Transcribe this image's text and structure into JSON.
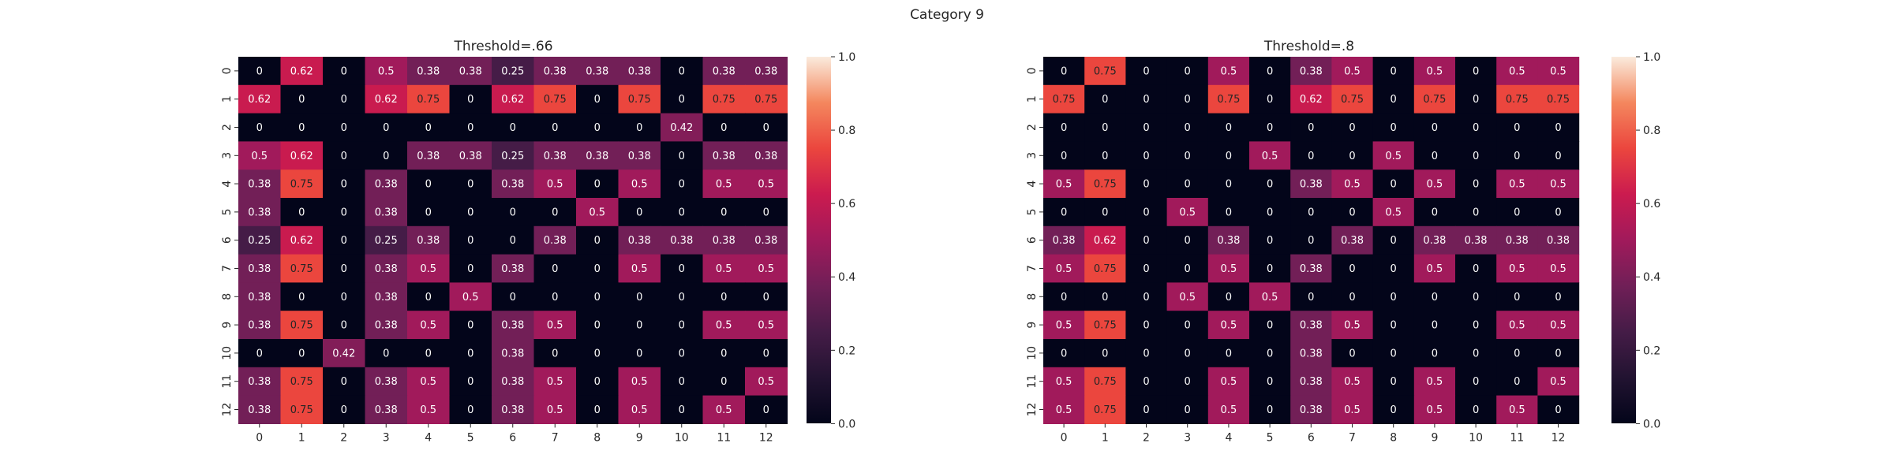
{
  "figure": {
    "suptitle": "Category 9"
  },
  "chart_data": [
    {
      "type": "heatmap",
      "title": "Threshold=.66",
      "xlabel": "",
      "ylabel": "",
      "x_ticks": [
        "0",
        "1",
        "2",
        "3",
        "4",
        "5",
        "6",
        "7",
        "8",
        "9",
        "10",
        "11",
        "12"
      ],
      "y_ticks": [
        "0",
        "1",
        "2",
        "3",
        "4",
        "5",
        "6",
        "7",
        "8",
        "9",
        "10",
        "11",
        "12"
      ],
      "colormap": "rocket",
      "vmin": 0.0,
      "vmax": 1.0,
      "colorbar_ticks": [
        "0.0",
        "0.2",
        "0.4",
        "0.6",
        "0.8",
        "1.0"
      ],
      "values": [
        [
          0,
          0.62,
          0,
          0.5,
          0.38,
          0.38,
          0.25,
          0.38,
          0.38,
          0.38,
          0,
          0.38,
          0.38
        ],
        [
          0.62,
          0,
          0,
          0.62,
          0.75,
          0,
          0.62,
          0.75,
          0,
          0.75,
          0,
          0.75,
          0.75
        ],
        [
          0,
          0,
          0,
          0,
          0,
          0,
          0,
          0,
          0,
          0,
          0.42,
          0,
          0
        ],
        [
          0.5,
          0.62,
          0,
          0,
          0.38,
          0.38,
          0.25,
          0.38,
          0.38,
          0.38,
          0,
          0.38,
          0.38
        ],
        [
          0.38,
          0.75,
          0,
          0.38,
          0,
          0,
          0.38,
          0.5,
          0,
          0.5,
          0,
          0.5,
          0.5
        ],
        [
          0.38,
          0,
          0,
          0.38,
          0,
          0,
          0,
          0,
          0.5,
          0,
          0,
          0,
          0
        ],
        [
          0.25,
          0.62,
          0,
          0.25,
          0.38,
          0,
          0,
          0.38,
          0,
          0.38,
          0.38,
          0.38,
          0.38
        ],
        [
          0.38,
          0.75,
          0,
          0.38,
          0.5,
          0,
          0.38,
          0,
          0,
          0.5,
          0,
          0.5,
          0.5
        ],
        [
          0.38,
          0,
          0,
          0.38,
          0,
          0.5,
          0,
          0,
          0,
          0,
          0,
          0,
          0
        ],
        [
          0.38,
          0.75,
          0,
          0.38,
          0.5,
          0,
          0.38,
          0.5,
          0,
          0,
          0,
          0.5,
          0.5
        ],
        [
          0,
          0,
          0.42,
          0,
          0,
          0,
          0.38,
          0,
          0,
          0,
          0,
          0,
          0
        ],
        [
          0.38,
          0.75,
          0,
          0.38,
          0.5,
          0,
          0.38,
          0.5,
          0,
          0.5,
          0,
          0,
          0.5
        ],
        [
          0.38,
          0.75,
          0,
          0.38,
          0.5,
          0,
          0.38,
          0.5,
          0,
          0.5,
          0,
          0.5,
          0
        ]
      ]
    },
    {
      "type": "heatmap",
      "title": "Threshold=.8",
      "xlabel": "",
      "ylabel": "",
      "x_ticks": [
        "0",
        "1",
        "2",
        "3",
        "4",
        "5",
        "6",
        "7",
        "8",
        "9",
        "10",
        "11",
        "12"
      ],
      "y_ticks": [
        "0",
        "1",
        "2",
        "3",
        "4",
        "5",
        "6",
        "7",
        "8",
        "9",
        "10",
        "11",
        "12"
      ],
      "colormap": "rocket",
      "vmin": 0.0,
      "vmax": 1.0,
      "colorbar_ticks": [
        "0.0",
        "0.2",
        "0.4",
        "0.6",
        "0.8",
        "1.0"
      ],
      "values": [
        [
          0,
          0.75,
          0,
          0,
          0.5,
          0,
          0.38,
          0.5,
          0,
          0.5,
          0,
          0.5,
          0.5
        ],
        [
          0.75,
          0,
          0,
          0,
          0.75,
          0,
          0.62,
          0.75,
          0,
          0.75,
          0,
          0.75,
          0.75
        ],
        [
          0,
          0,
          0,
          0,
          0,
          0,
          0,
          0,
          0,
          0,
          0,
          0,
          0
        ],
        [
          0,
          0,
          0,
          0,
          0,
          0.5,
          0,
          0,
          0.5,
          0,
          0,
          0,
          0
        ],
        [
          0.5,
          0.75,
          0,
          0,
          0,
          0,
          0.38,
          0.5,
          0,
          0.5,
          0,
          0.5,
          0.5
        ],
        [
          0,
          0,
          0,
          0.5,
          0,
          0,
          0,
          0,
          0.5,
          0,
          0,
          0,
          0
        ],
        [
          0.38,
          0.62,
          0,
          0,
          0.38,
          0,
          0,
          0.38,
          0,
          0.38,
          0.38,
          0.38,
          0.38
        ],
        [
          0.5,
          0.75,
          0,
          0,
          0.5,
          0,
          0.38,
          0,
          0,
          0.5,
          0,
          0.5,
          0.5
        ],
        [
          0,
          0,
          0,
          0.5,
          0,
          0.5,
          0,
          0,
          0,
          0,
          0,
          0,
          0
        ],
        [
          0.5,
          0.75,
          0,
          0,
          0.5,
          0,
          0.38,
          0.5,
          0,
          0,
          0,
          0.5,
          0.5
        ],
        [
          0,
          0,
          0,
          0,
          0,
          0,
          0.38,
          0,
          0,
          0,
          0,
          0,
          0
        ],
        [
          0.5,
          0.75,
          0,
          0,
          0.5,
          0,
          0.38,
          0.5,
          0,
          0.5,
          0,
          0,
          0.5
        ],
        [
          0.5,
          0.75,
          0,
          0,
          0.5,
          0,
          0.38,
          0.5,
          0,
          0.5,
          0,
          0.5,
          0
        ]
      ]
    }
  ]
}
